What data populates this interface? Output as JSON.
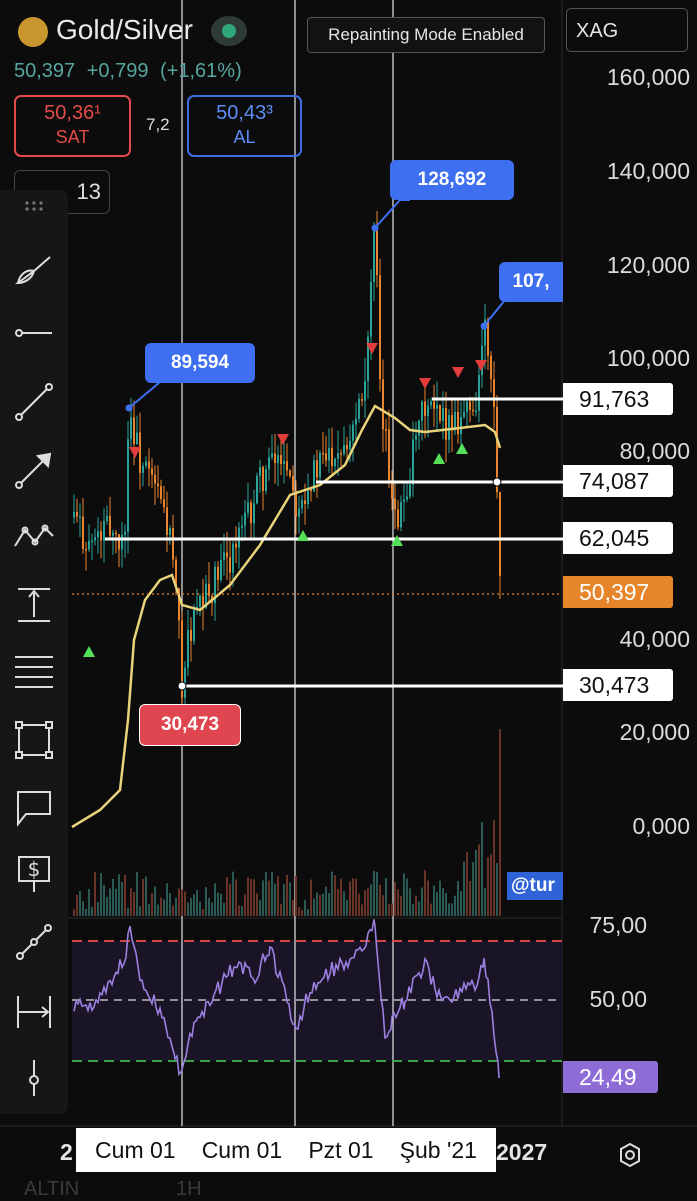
{
  "header": {
    "title": "Gold/Silver",
    "repaint_label": "Repainting Mode Enabled",
    "symbol": "XAG",
    "price": "50,397",
    "change": "+0,799",
    "change_pct": "(+1,61%)",
    "sell_price": "50,36¹",
    "sell_label": "SAT",
    "spread": "7,2",
    "buy_price": "50,43³",
    "buy_label": "AL",
    "interval": "13"
  },
  "price_axis": {
    "ticks": [
      "160,000",
      "140,000",
      "120,000",
      "100,000",
      "80,000",
      "40,000",
      "20,000",
      "0,000"
    ],
    "tags": [
      {
        "name": "level-91763",
        "label": "91,763",
        "style": "white"
      },
      {
        "name": "level-74087",
        "label": "74,087",
        "style": "white"
      },
      {
        "name": "level-62045",
        "label": "62,045",
        "style": "white"
      },
      {
        "name": "last-price",
        "label": "50,397",
        "style": "orange"
      },
      {
        "name": "level-30473",
        "label": "30,473",
        "style": "white"
      }
    ]
  },
  "callouts": {
    "high_1": "89,594",
    "high_2": "128,692",
    "high_3": "107,",
    "low_1": "30,473"
  },
  "watermark": "@tur",
  "oscillator": {
    "ticks": [
      "75,00",
      "50,00"
    ],
    "value": "24,49"
  },
  "time_axis": {
    "left_edge": "2",
    "labels": [
      "Cum 01",
      "Cum 01",
      "Pzt 01",
      "Şub '21"
    ],
    "right_edge": "2027"
  },
  "bottom": {
    "left": "ALTIN",
    "mid": "1H"
  },
  "colors": {
    "up": "#2aa49a",
    "down": "#e8842c",
    "ma": "#e8d27a",
    "callout_blue": "#3d6ff0",
    "callout_red": "#e0464f",
    "rsi": "#9c7fe0"
  },
  "icons": [
    "brush-icon",
    "horizontal-line-icon",
    "trend-line-icon",
    "arrow-icon",
    "pattern-icon",
    "measure-icon",
    "fib-levels-icon",
    "rectangle-icon",
    "callout-icon",
    "price-label-icon",
    "path-icon",
    "date-range-icon",
    "anchor-icon",
    "settings-gear-icon"
  ]
}
